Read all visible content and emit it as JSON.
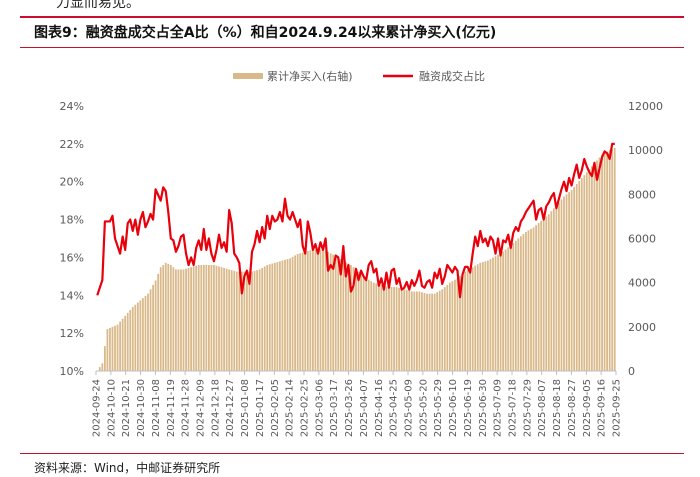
{
  "figure": {
    "title": "图表9：融资盘成交占全A比（%）和自2024.9.24以来累计净买入(亿元)",
    "source": "资料来源：Wind，中邮证券研究所",
    "top_fragment": "力显而易见。"
  },
  "colors": {
    "accent_red": "#e8000b",
    "bar_gold": "#d9b98a",
    "rule_red": "#c8102e",
    "axis_gray": "#595959"
  },
  "chart_data": {
    "type": "bar+line",
    "legend_placement": "top-center",
    "grid": false,
    "left_axis": {
      "ylim": [
        10,
        24
      ],
      "ticks": [
        "10%",
        "12%",
        "14%",
        "16%",
        "18%",
        "20%",
        "22%",
        "24%"
      ],
      "tick_values": [
        10,
        12,
        14,
        16,
        18,
        20,
        22,
        24
      ]
    },
    "right_axis": {
      "ylim": [
        0,
        12000
      ],
      "ticks": [
        "0",
        "2000",
        "4000",
        "6000",
        "8000",
        "10000",
        "12000"
      ],
      "tick_values": [
        0,
        2000,
        4000,
        6000,
        8000,
        10000,
        12000
      ]
    },
    "x_tick_labels": [
      "2024-09-24",
      "2024-10-10",
      "2024-10-21",
      "2024-10-30",
      "2024-11-08",
      "2024-11-19",
      "2024-11-28",
      "2024-12-09",
      "2024-12-18",
      "2024-12-27",
      "2025-01-08",
      "2025-01-17",
      "2025-02-05",
      "2025-02-14",
      "2025-02-25",
      "2025-03-06",
      "2025-03-17",
      "2025-03-26",
      "2025-04-07",
      "2025-04-16",
      "2025-04-25",
      "2025-05-09",
      "2025-05-20",
      "2025-05-29",
      "2025-06-10",
      "2025-06-19",
      "2025-06-30",
      "2025-07-09",
      "2025-07-18",
      "2025-07-29",
      "2025-08-07",
      "2025-08-18",
      "2025-08-27",
      "2025-09-05",
      "2025-09-16",
      "2025-09-25"
    ],
    "series": [
      {
        "name": "累计净买入(右轴)",
        "kind": "bar",
        "axis": "right",
        "knots": [
          [
            0,
            0
          ],
          [
            2,
            350
          ],
          [
            4,
            1900
          ],
          [
            6,
            2000
          ],
          [
            8,
            2100
          ],
          [
            11,
            2500
          ],
          [
            14,
            2900
          ],
          [
            17,
            3200
          ],
          [
            20,
            3500
          ],
          [
            23,
            4100
          ],
          [
            25,
            4700
          ],
          [
            27,
            4900
          ],
          [
            29,
            4800
          ],
          [
            31,
            4600
          ],
          [
            34,
            4600
          ],
          [
            37,
            4700
          ],
          [
            40,
            4800
          ],
          [
            43,
            4800
          ],
          [
            46,
            4800
          ],
          [
            49,
            4700
          ],
          [
            52,
            4600
          ],
          [
            55,
            4500
          ],
          [
            58,
            4500
          ],
          [
            61,
            4500
          ],
          [
            64,
            4600
          ],
          [
            67,
            4800
          ],
          [
            70,
            4900
          ],
          [
            73,
            5000
          ],
          [
            76,
            5100
          ],
          [
            79,
            5300
          ],
          [
            82,
            5400
          ],
          [
            85,
            5500
          ],
          [
            88,
            5500
          ],
          [
            91,
            5400
          ],
          [
            94,
            5200
          ],
          [
            97,
            5000
          ],
          [
            100,
            4800
          ],
          [
            103,
            4500
          ],
          [
            106,
            4200
          ],
          [
            109,
            4000
          ],
          [
            112,
            3900
          ],
          [
            115,
            3800
          ],
          [
            118,
            3800
          ],
          [
            121,
            3700
          ],
          [
            124,
            3600
          ],
          [
            127,
            3600
          ],
          [
            130,
            3500
          ],
          [
            133,
            3500
          ],
          [
            136,
            3700
          ],
          [
            139,
            4000
          ],
          [
            142,
            4200
          ],
          [
            145,
            4500
          ],
          [
            148,
            4700
          ],
          [
            151,
            4900
          ],
          [
            154,
            5000
          ],
          [
            157,
            5200
          ],
          [
            160,
            5400
          ],
          [
            163,
            5700
          ],
          [
            166,
            6000
          ],
          [
            169,
            6300
          ],
          [
            172,
            6500
          ],
          [
            175,
            6800
          ],
          [
            178,
            7100
          ],
          [
            181,
            7500
          ],
          [
            184,
            7900
          ],
          [
            187,
            8200
          ],
          [
            190,
            8600
          ],
          [
            193,
            9000
          ],
          [
            196,
            9400
          ],
          [
            199,
            9800
          ],
          [
            202,
            10000
          ],
          [
            204,
            10100
          ]
        ],
        "n_points": 205
      },
      {
        "name": "融资成交占比",
        "kind": "line",
        "axis": "left",
        "knots": [
          [
            0,
            14.0
          ],
          [
            2,
            14.8
          ],
          [
            3,
            17.9
          ],
          [
            5,
            17.9
          ],
          [
            6,
            18.2
          ],
          [
            7,
            17.0
          ],
          [
            8,
            16.6
          ],
          [
            9,
            16.2
          ],
          [
            10,
            17.1
          ],
          [
            11,
            16.4
          ],
          [
            12,
            17.8
          ],
          [
            13,
            18.0
          ],
          [
            14,
            17.4
          ],
          [
            15,
            18.0
          ],
          [
            16,
            17.2
          ],
          [
            17,
            18.0
          ],
          [
            18,
            18.4
          ],
          [
            19,
            17.6
          ],
          [
            20,
            17.9
          ],
          [
            21,
            18.3
          ],
          [
            22,
            18.0
          ],
          [
            23,
            19.6
          ],
          [
            24,
            19.3
          ],
          [
            25,
            19.0
          ],
          [
            26,
            19.7
          ],
          [
            27,
            19.5
          ],
          [
            28,
            18.4
          ],
          [
            29,
            17.0
          ],
          [
            30,
            16.9
          ],
          [
            31,
            16.3
          ],
          [
            32,
            16.6
          ],
          [
            33,
            17.1
          ],
          [
            34,
            17.2
          ],
          [
            35,
            16.2
          ],
          [
            36,
            15.6
          ],
          [
            37,
            16.0
          ],
          [
            38,
            15.6
          ],
          [
            39,
            16.5
          ],
          [
            40,
            16.9
          ],
          [
            41,
            16.4
          ],
          [
            42,
            17.5
          ],
          [
            43,
            16.4
          ],
          [
            44,
            17.0
          ],
          [
            45,
            16.2
          ],
          [
            46,
            15.8
          ],
          [
            47,
            16.4
          ],
          [
            48,
            17.2
          ],
          [
            49,
            16.5
          ],
          [
            50,
            16.8
          ],
          [
            51,
            16.3
          ],
          [
            52,
            18.5
          ],
          [
            53,
            17.8
          ],
          [
            54,
            16.2
          ],
          [
            55,
            16.0
          ],
          [
            56,
            15.7
          ],
          [
            57,
            14.1
          ],
          [
            58,
            15.0
          ],
          [
            59,
            15.3
          ],
          [
            60,
            14.6
          ],
          [
            61,
            16.3
          ],
          [
            62,
            16.7
          ],
          [
            63,
            17.4
          ],
          [
            64,
            16.8
          ],
          [
            65,
            17.6
          ],
          [
            66,
            17.0
          ],
          [
            67,
            18.2
          ],
          [
            68,
            17.5
          ],
          [
            69,
            18.2
          ],
          [
            70,
            17.9
          ],
          [
            71,
            18.0
          ],
          [
            72,
            18.4
          ],
          [
            73,
            17.9
          ],
          [
            74,
            19.1
          ],
          [
            75,
            18.2
          ],
          [
            76,
            18.0
          ],
          [
            77,
            18.4
          ],
          [
            78,
            18.0
          ],
          [
            79,
            17.6
          ],
          [
            80,
            18.0
          ],
          [
            81,
            16.6
          ],
          [
            82,
            16.2
          ],
          [
            83,
            17.9
          ],
          [
            84,
            17.3
          ],
          [
            85,
            16.4
          ],
          [
            86,
            16.7
          ],
          [
            87,
            16.2
          ],
          [
            88,
            16.8
          ],
          [
            89,
            16.4
          ],
          [
            90,
            17.0
          ],
          [
            91,
            15.3
          ],
          [
            92,
            15.6
          ],
          [
            93,
            15.4
          ],
          [
            94,
            16.1
          ],
          [
            95,
            16.0
          ],
          [
            96,
            15.1
          ],
          [
            97,
            16.6
          ],
          [
            98,
            15.0
          ],
          [
            99,
            15.6
          ],
          [
            100,
            14.2
          ],
          [
            101,
            14.5
          ],
          [
            102,
            15.4
          ],
          [
            103,
            14.8
          ],
          [
            104,
            15.3
          ],
          [
            105,
            15.0
          ],
          [
            106,
            14.8
          ],
          [
            107,
            15.6
          ],
          [
            108,
            15.8
          ],
          [
            109,
            15.2
          ],
          [
            110,
            15.4
          ],
          [
            111,
            14.5
          ],
          [
            112,
            14.9
          ],
          [
            113,
            14.3
          ],
          [
            114,
            15.2
          ],
          [
            115,
            14.4
          ],
          [
            116,
            15.3
          ],
          [
            117,
            15.4
          ],
          [
            118,
            14.6
          ],
          [
            119,
            14.9
          ],
          [
            120,
            14.3
          ],
          [
            121,
            14.4
          ],
          [
            122,
            14.7
          ],
          [
            123,
            14.3
          ],
          [
            124,
            14.8
          ],
          [
            125,
            14.5
          ],
          [
            126,
            14.8
          ],
          [
            127,
            15.3
          ],
          [
            128,
            14.5
          ],
          [
            129,
            14.4
          ],
          [
            130,
            14.7
          ],
          [
            131,
            14.8
          ],
          [
            132,
            14.4
          ],
          [
            133,
            15.2
          ],
          [
            134,
            14.9
          ],
          [
            135,
            15.4
          ],
          [
            136,
            14.6
          ],
          [
            137,
            15.0
          ],
          [
            138,
            15.6
          ],
          [
            139,
            15.4
          ],
          [
            140,
            15.2
          ],
          [
            141,
            15.5
          ],
          [
            142,
            15.3
          ],
          [
            143,
            13.9
          ],
          [
            144,
            15.1
          ],
          [
            145,
            15.5
          ],
          [
            146,
            15.5
          ],
          [
            147,
            15.2
          ],
          [
            148,
            16.2
          ],
          [
            149,
            17.1
          ],
          [
            150,
            16.6
          ],
          [
            151,
            17.4
          ],
          [
            152,
            16.8
          ],
          [
            153,
            17.0
          ],
          [
            154,
            16.6
          ],
          [
            155,
            17.1
          ],
          [
            156,
            16.9
          ],
          [
            157,
            16.2
          ],
          [
            158,
            17.0
          ],
          [
            159,
            16.1
          ],
          [
            160,
            16.9
          ],
          [
            161,
            16.8
          ],
          [
            162,
            17.2
          ],
          [
            163,
            16.5
          ],
          [
            164,
            17.3
          ],
          [
            165,
            17.6
          ],
          [
            166,
            17.4
          ],
          [
            167,
            17.9
          ],
          [
            168,
            18.1
          ],
          [
            169,
            18.4
          ],
          [
            170,
            18.6
          ],
          [
            171,
            18.8
          ],
          [
            172,
            19.0
          ],
          [
            173,
            18.0
          ],
          [
            174,
            18.5
          ],
          [
            175,
            18.6
          ],
          [
            176,
            18.0
          ],
          [
            177,
            18.7
          ],
          [
            178,
            18.9
          ],
          [
            179,
            19.2
          ],
          [
            180,
            19.4
          ],
          [
            181,
            18.6
          ],
          [
            182,
            19.1
          ],
          [
            183,
            19.6
          ],
          [
            184,
            20.0
          ],
          [
            185,
            19.5
          ],
          [
            186,
            20.2
          ],
          [
            187,
            19.8
          ],
          [
            188,
            20.4
          ],
          [
            189,
            20.9
          ],
          [
            190,
            20.2
          ],
          [
            191,
            20.6
          ],
          [
            192,
            21.2
          ],
          [
            193,
            20.8
          ],
          [
            194,
            20.5
          ],
          [
            195,
            20.3
          ],
          [
            196,
            21.0
          ],
          [
            197,
            20.1
          ],
          [
            198,
            20.7
          ],
          [
            199,
            21.3
          ],
          [
            200,
            21.6
          ],
          [
            201,
            21.5
          ],
          [
            202,
            21.2
          ],
          [
            203,
            22.0
          ],
          [
            204,
            22.0
          ]
        ],
        "n_points": 205
      }
    ]
  }
}
